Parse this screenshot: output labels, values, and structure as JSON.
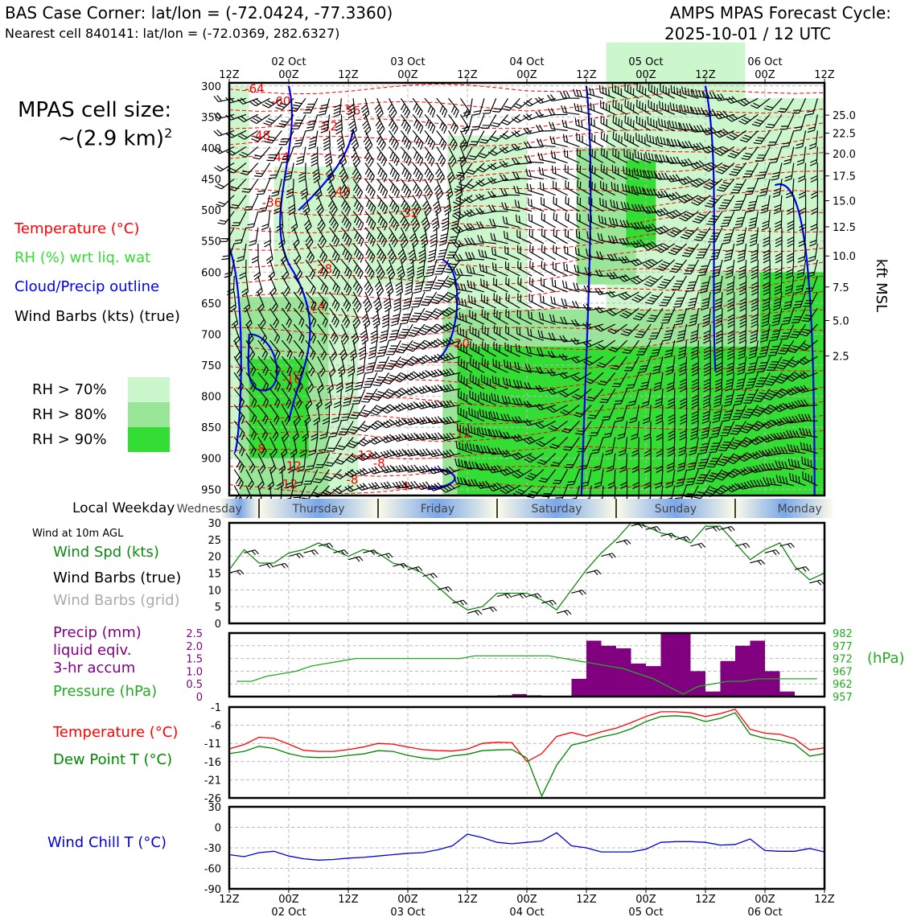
{
  "header": {
    "title_left": "BAS Case Corner: lat/lon = (-72.0424, -77.3360)",
    "subtitle_left": "Nearest cell 840141: lat/lon = (-72.0369, 282.6327)",
    "title_right_1": "AMPS MPAS Forecast Cycle:",
    "title_right_2": "2025-10-01 / 12 UTC"
  },
  "cell_size": {
    "line1": "MPAS cell size:",
    "line2": "~(2.9 km)",
    "exp": "2"
  },
  "legend": {
    "temperature": "Temperature (°C)",
    "rh": "RH (%) wrt liq. wat",
    "cloud": "Cloud/Precip outline",
    "wind": "Wind Barbs (kts) (true)",
    "rh70": "RH > 70%",
    "rh80": "RH > 80%",
    "rh90": "RH > 90%"
  },
  "colors": {
    "temp": "#ff0000",
    "rh70": "#ccf7cc",
    "rh80": "#99e699",
    "rh90": "#33dd33",
    "cloud": "#0000ee",
    "precip": "#800080",
    "pressure": "#22aa22",
    "dew": "#008800",
    "windchill": "#0000dd",
    "windspd": "#118811",
    "grid": "#bbbbbb"
  },
  "time_axis": {
    "top_labels": [
      "12Z",
      "00Z",
      "12Z",
      "00Z",
      "12Z",
      "00Z",
      "12Z",
      "00Z",
      "12Z",
      "00Z",
      "12Z"
    ],
    "date_labels": [
      "02 Oct",
      "03 Oct",
      "04 Oct",
      "05 Oct",
      "06 Oct"
    ]
  },
  "weekday": {
    "label": "Local Weekday",
    "days": [
      "Wednesday",
      "Thursday",
      "Friday",
      "Saturday",
      "Sunday",
      "Monday"
    ]
  },
  "side_legend": {
    "wind_note": "Wind at 10m AGL",
    "wind_spd": "Wind Spd (kts)",
    "wind_barbs_true": "Wind Barbs (true)",
    "wind_barbs_grid": "Wind Barbs (grid)",
    "precip_1": "Precip (mm)",
    "precip_2": "liquid eqiv.",
    "precip_3": "3-hr accum",
    "pressure": "Pressure (hPa)",
    "temperature": "Temperature (°C)",
    "dewpoint": "Dew Point T (°C)",
    "windchill": "Wind Chill T (°C)",
    "hpa_unit": "(hPa)"
  },
  "chart_data": [
    {
      "type": "heatmap",
      "name": "profile",
      "y_ticks_hpa": [
        300,
        350,
        400,
        450,
        500,
        550,
        600,
        650,
        700,
        750,
        800,
        850,
        900,
        950
      ],
      "ylim_hpa": [
        295,
        960
      ],
      "right_ticks_kft": [
        "25.0",
        "22.5",
        "20.0",
        "17.5",
        "15.0",
        "12.5",
        "10.0",
        "7.5",
        "5.0",
        "2.5"
      ],
      "right_ticks_hpa": [
        347,
        376,
        409,
        445,
        485,
        527,
        574,
        624,
        678,
        735
      ],
      "ylabel_right": "kft MSL",
      "temp_labels": [
        {
          "v": "-64",
          "t": 5.1,
          "p": 305
        },
        {
          "v": "-60",
          "t": 10.4,
          "p": 325
        },
        {
          "v": "-56",
          "t": 24.5,
          "p": 340
        },
        {
          "v": "-52",
          "t": 19.9,
          "p": 365
        },
        {
          "v": "-48",
          "t": 6.3,
          "p": 380
        },
        {
          "v": "-44",
          "t": 10.1,
          "p": 415
        },
        {
          "v": "-40",
          "t": 22.5,
          "p": 470
        },
        {
          "v": "-36",
          "t": 8.6,
          "p": 488
        },
        {
          "v": "-32",
          "t": 36.2,
          "p": 505
        },
        {
          "v": "-28",
          "t": 18.8,
          "p": 595
        },
        {
          "v": "-24",
          "t": 17.4,
          "p": 655
        },
        {
          "v": "-20",
          "t": 46.5,
          "p": 715
        },
        {
          "v": "-16",
          "t": 12.6,
          "p": 773
        },
        {
          "v": "-12",
          "t": 46.8,
          "p": 860
        },
        {
          "v": "-12",
          "t": 27.0,
          "p": 895
        },
        {
          "v": "-8",
          "t": 6.1,
          "p": 885
        },
        {
          "v": "-8",
          "t": 24.8,
          "p": 935
        },
        {
          "v": "-4",
          "t": 35.0,
          "p": 945
        },
        {
          "v": "-8",
          "t": 30.2,
          "p": 908
        },
        {
          "v": "-12",
          "t": 12.6,
          "p": 913
        },
        {
          "v": "-12",
          "t": 11.8,
          "p": 942
        }
      ]
    },
    {
      "type": "line",
      "name": "wind10m",
      "x_hours": [
        0,
        3,
        6,
        9,
        12,
        15,
        18,
        21,
        24,
        27,
        30,
        33,
        36,
        39,
        42,
        45,
        48,
        51,
        54,
        57,
        60,
        63,
        66,
        69,
        72,
        75,
        78,
        81,
        84,
        87,
        90,
        93,
        96,
        99,
        102,
        105,
        108,
        111,
        114,
        117,
        120
      ],
      "series": [
        {
          "name": "Wind Spd (kts)",
          "values": [
            16,
            22,
            18,
            18,
            21,
            22,
            24,
            22,
            20,
            22,
            21,
            18,
            17,
            15,
            11,
            7,
            4,
            5,
            9,
            9,
            9,
            7,
            4,
            10,
            16,
            21,
            25,
            30,
            29,
            27,
            26,
            24,
            29,
            29,
            24,
            19,
            22,
            24,
            17,
            13,
            15
          ]
        }
      ],
      "ylim": [
        0,
        30
      ],
      "yticks": [
        0,
        5,
        10,
        15,
        20,
        25,
        30
      ]
    },
    {
      "type": "bar",
      "name": "precip_pressure",
      "x_hours_bins": [
        0,
        3,
        6,
        9,
        12,
        15,
        18,
        21,
        24,
        27,
        30,
        33,
        36,
        39,
        42,
        45,
        48,
        51,
        54,
        57,
        60,
        63,
        66,
        69,
        72,
        75,
        78,
        81,
        84,
        87,
        90,
        93,
        96,
        99,
        102,
        105,
        108,
        111,
        114,
        117
      ],
      "series": [
        {
          "name": "Precip (mm)",
          "values": [
            0,
            0,
            0,
            0,
            0,
            0,
            0,
            0,
            0,
            0,
            0,
            0,
            0,
            0,
            0,
            0,
            0,
            0,
            0.05,
            0.1,
            0.05,
            0,
            0,
            0.7,
            2.2,
            2.0,
            1.9,
            1.3,
            1.2,
            2.5,
            2.5,
            1.0,
            0.2,
            1.4,
            2.0,
            2.2,
            1.0,
            0.2,
            0,
            0
          ]
        },
        {
          "name": "Pressure (hPa)",
          "values": [
            963,
            963,
            965,
            966,
            967,
            969,
            970,
            971,
            972,
            972,
            972,
            972,
            972,
            972,
            972,
            972,
            973,
            973,
            973,
            973,
            973,
            973,
            972,
            971,
            970,
            969,
            968,
            966,
            964,
            961,
            958,
            961,
            962,
            963,
            963,
            964,
            964,
            964,
            964,
            964
          ]
        }
      ],
      "ylim_precip": [
        0,
        2.5
      ],
      "yticks_precip": [
        "0",
        "0.5",
        "1.0",
        "1.5",
        "2.0",
        "2.5"
      ],
      "ylim_pres": [
        957,
        982
      ],
      "yticks_pres": [
        "957",
        "962",
        "967",
        "972",
        "977",
        "982"
      ]
    },
    {
      "type": "line",
      "name": "temp_dew",
      "x_hours": [
        0,
        3,
        6,
        9,
        12,
        15,
        18,
        21,
        24,
        27,
        30,
        33,
        36,
        39,
        42,
        45,
        48,
        51,
        54,
        57,
        60,
        63,
        66,
        69,
        72,
        75,
        78,
        81,
        84,
        87,
        90,
        93,
        96,
        99,
        102,
        105,
        108,
        111,
        114,
        117,
        120
      ],
      "series": [
        {
          "name": "Temperature (°C)",
          "values": [
            -12.5,
            -11.3,
            -9.3,
            -9.6,
            -11.2,
            -12.9,
            -13.2,
            -13.2,
            -12.7,
            -12.0,
            -11.0,
            -11.2,
            -12.0,
            -12.7,
            -13.0,
            -13.1,
            -12.6,
            -11.0,
            -10.7,
            -10.8,
            -16.0,
            -13.8,
            -9.1,
            -8.0,
            -9.0,
            -7.8,
            -6.8,
            -5.3,
            -3.6,
            -2.3,
            -2.3,
            -2.6,
            -3.6,
            -2.8,
            -1.6,
            -7.1,
            -8.2,
            -8.5,
            -9.7,
            -12.8,
            -12.2
          ]
        },
        {
          "name": "Dew Point T (°C)",
          "values": [
            -13.8,
            -13.2,
            -11.8,
            -12.4,
            -13.8,
            -14.7,
            -14.9,
            -14.8,
            -14.3,
            -13.9,
            -13.0,
            -13.2,
            -14.3,
            -15.0,
            -15.4,
            -14.4,
            -14.0,
            -13.0,
            -12.8,
            -12.7,
            -15.0,
            -25.5,
            -17.0,
            -11.5,
            -10.5,
            -9.2,
            -8.4,
            -7.0,
            -5.0,
            -3.6,
            -3.4,
            -3.7,
            -5.0,
            -4.1,
            -2.6,
            -8.5,
            -9.6,
            -10.2,
            -11.2,
            -14.5,
            -13.8
          ]
        }
      ],
      "ylim": [
        -26,
        -1
      ],
      "yticks": [
        "-1",
        "-6",
        "-11",
        "-16",
        "-21",
        "-26"
      ]
    },
    {
      "type": "line",
      "name": "windchill",
      "x_hours": [
        0,
        3,
        6,
        9,
        12,
        15,
        18,
        21,
        24,
        27,
        30,
        33,
        36,
        39,
        42,
        45,
        48,
        51,
        54,
        57,
        60,
        63,
        66,
        69,
        72,
        75,
        78,
        81,
        84,
        87,
        90,
        93,
        96,
        99,
        102,
        105,
        108,
        111,
        114,
        117,
        120
      ],
      "series": [
        {
          "name": "Wind Chill T (°C)",
          "values": [
            -40,
            -43,
            -37,
            -35,
            -42,
            -46,
            -48,
            -47,
            -45,
            -44,
            -42,
            -40,
            -38,
            -37,
            -33,
            -27,
            -10,
            -15,
            -22,
            -24,
            -22,
            -20,
            -8,
            -27,
            -30,
            -36,
            -36,
            -36,
            -32,
            -22,
            -21,
            -21,
            -22,
            -26,
            -25,
            -17,
            -34,
            -35,
            -35,
            -31,
            -36
          ]
        }
      ],
      "ylim": [
        -90,
        30
      ],
      "yticks": [
        "30",
        "0",
        "-30",
        "-60",
        "-90"
      ]
    }
  ]
}
